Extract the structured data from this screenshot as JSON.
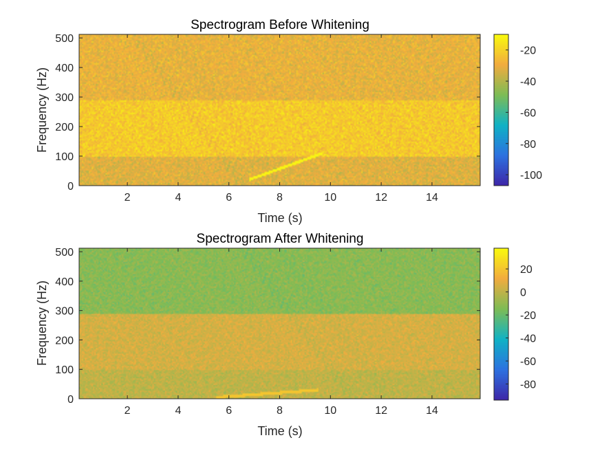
{
  "chart_data": [
    {
      "type": "heatmap",
      "title": "Spectrogram Before Whitening",
      "xlabel": "Time (s)",
      "ylabel": "Frequency (Hz)",
      "xlim": [
        0.1,
        15.9
      ],
      "ylim": [
        0,
        512
      ],
      "xticks": [
        2,
        4,
        6,
        8,
        10,
        12,
        14
      ],
      "yticks": [
        0,
        100,
        200,
        300,
        400,
        500
      ],
      "colorbar": {
        "range": [
          -107,
          -10
        ],
        "ticks": [
          -20,
          -40,
          -60,
          -80,
          -100
        ]
      },
      "bands": [
        {
          "from_hz": 0,
          "to_hz": 100,
          "level_db": -32
        },
        {
          "from_hz": 100,
          "to_hz": 290,
          "level_db": -22
        },
        {
          "from_hz": 290,
          "to_hz": 512,
          "level_db": -30
        }
      ],
      "chirp": {
        "t_start": 6.8,
        "t_end": 9.7,
        "f_start": 20,
        "f_end": 110,
        "level_db": -12
      },
      "colormap": "parula"
    },
    {
      "type": "heatmap",
      "title": "Spectrogram After Whitening",
      "xlabel": "Time (s)",
      "ylabel": "Frequency (Hz)",
      "xlim": [
        0.1,
        15.9
      ],
      "ylim": [
        0,
        512
      ],
      "xticks": [
        2,
        4,
        6,
        8,
        10,
        12,
        14
      ],
      "yticks": [
        0,
        100,
        200,
        300,
        400,
        500
      ],
      "colorbar": {
        "range": [
          -94,
          38
        ],
        "ticks": [
          20,
          0,
          -20,
          -40,
          -60,
          -80
        ]
      },
      "bands": [
        {
          "from_hz": 0,
          "to_hz": 100,
          "level_db": 0
        },
        {
          "from_hz": 100,
          "to_hz": 290,
          "level_db": 5
        },
        {
          "from_hz": 290,
          "to_hz": 512,
          "level_db": -12
        }
      ],
      "chirp": {
        "t_start": 5.5,
        "t_end": 9.5,
        "f_start": 5,
        "f_end": 30,
        "level_db": 20
      },
      "colormap": "parula"
    }
  ],
  "colors": {
    "parula_dark": "#3e26a8",
    "parula_blue": "#2d72e0",
    "parula_teal": "#10b2c5",
    "parula_green": "#7ebc55",
    "parula_orange": "#f2ac3f",
    "parula_yellow": "#f9fb0e"
  }
}
